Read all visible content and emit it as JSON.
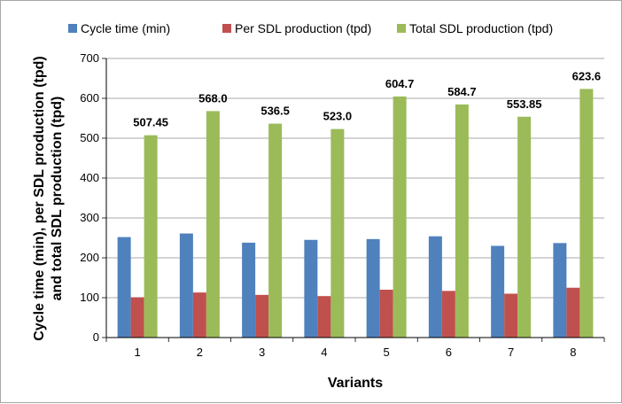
{
  "chart_data": {
    "type": "bar",
    "title": "",
    "xlabel": "Variants",
    "ylabel_lines": [
      "Cycle time (min), per SDL production (tpd)",
      "and total SDL production (tpd)"
    ],
    "categories": [
      "1",
      "2",
      "3",
      "4",
      "5",
      "6",
      "7",
      "8"
    ],
    "ylim": [
      0,
      700
    ],
    "yticks": [
      0,
      100,
      200,
      300,
      400,
      500,
      600,
      700
    ],
    "ytick_labels": [
      "0",
      "100",
      "200",
      "300",
      "400",
      "500",
      "600",
      "700"
    ],
    "grid": true,
    "legend_position": "top",
    "series": [
      {
        "name": "Cycle time (min)",
        "color": "#4f81bd",
        "values": [
          252,
          261,
          238,
          245,
          247,
          254,
          230,
          237
        ]
      },
      {
        "name": "Per SDL production (tpd)",
        "color": "#c0504d",
        "values": [
          101,
          113,
          107,
          104,
          120,
          117,
          110,
          125
        ]
      },
      {
        "name": "Total SDL production (tpd)",
        "color": "#9bbb59",
        "values": [
          507.45,
          568.0,
          536.5,
          523.0,
          604.7,
          584.7,
          553.85,
          623.6
        ],
        "data_labels": [
          "507.45",
          "568.0",
          "536.5",
          "523.0",
          "604.7",
          "584.7",
          "553.85",
          "623.6"
        ]
      }
    ]
  }
}
